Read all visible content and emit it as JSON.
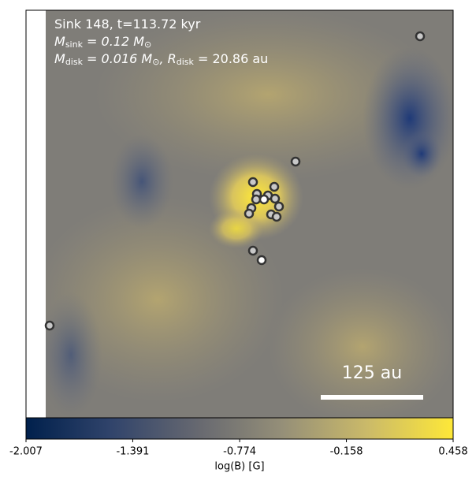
{
  "chart_data": {
    "type": "image",
    "title_lines": [
      [
        {
          "t": "Sink 148, t=113.72 kyr"
        }
      ],
      [
        {
          "t": "M"
        },
        {
          "t": "sink",
          "sub": true
        },
        {
          "t": " = 0.12 M"
        },
        {
          "t": "⊙",
          "sub": true
        }
      ],
      [
        {
          "t": "M"
        },
        {
          "t": "disk",
          "sub": true
        },
        {
          "t": " = 0.016 M"
        },
        {
          "t": "⊙",
          "sub": true
        },
        {
          "t": ", R"
        },
        {
          "t": "disk",
          "sub": true
        },
        {
          "t": " = 20.86 au"
        }
      ]
    ],
    "scale_bar_label": "125 au",
    "colorbar": {
      "label": "log(B) [G]",
      "lim": [
        -2.007,
        0.458
      ],
      "ticks": [
        -2.007,
        -1.391,
        -0.774,
        -0.158,
        0.458
      ],
      "colors": [
        "#00204c",
        "#31446b",
        "#666870",
        "#958f78",
        "#cbba69",
        "#fee838"
      ]
    }
  }
}
